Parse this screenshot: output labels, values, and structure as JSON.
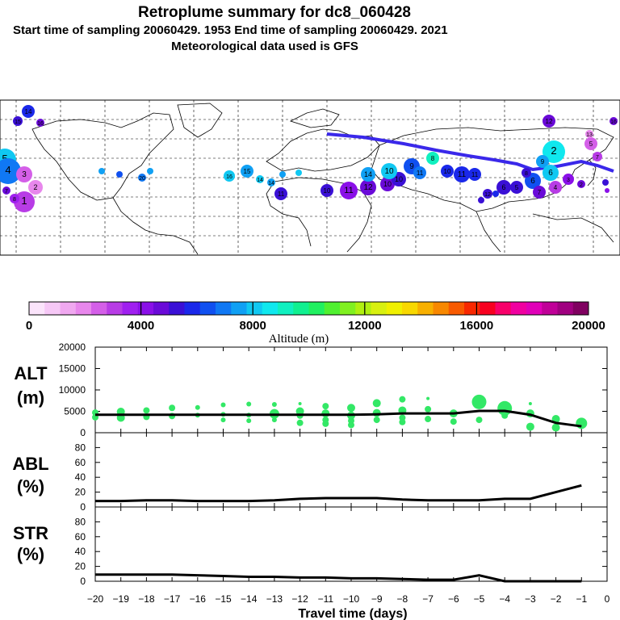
{
  "header": {
    "title": "Retroplume summary for dc8_060428",
    "line2": "Start time of sampling 20060429.  1953     End time of sampling 20060429.  2021",
    "line3": "Meteorological data used is GFS"
  },
  "colorbar": {
    "label": "Altitude (m)",
    "ticks": [
      "0",
      "4000",
      "8000",
      "12000",
      "16000",
      "20000"
    ],
    "colors": [
      "#fbe4fb",
      "#f6c8f6",
      "#f0a8f0",
      "#e887ec",
      "#d45fe8",
      "#b83ce6",
      "#a020f0",
      "#8a10e8",
      "#6a0ad8",
      "#3a10d6",
      "#1a28ea",
      "#1050f0",
      "#1078f4",
      "#10a0f4",
      "#10c8f2",
      "#10e8ee",
      "#10f0c0",
      "#10f090",
      "#20f060",
      "#50f030",
      "#80f020",
      "#b0f010",
      "#d8f010",
      "#f0f000",
      "#f8d800",
      "#f8b000",
      "#f88800",
      "#f85a00",
      "#f82800",
      "#f80020",
      "#f8006a",
      "#f000a0",
      "#e000b8",
      "#c00098",
      "#a00080",
      "#800060"
    ]
  },
  "map_labels": [
    "1",
    "2",
    "3",
    "4",
    "5",
    "6",
    "7",
    "8",
    "9",
    "10",
    "11",
    "12",
    "13",
    "14",
    "15",
    "16",
    "17",
    "18",
    "19",
    "20"
  ],
  "chart_data": [
    {
      "type": "scatter+line",
      "panel": "ALT",
      "ylabel": "ALT",
      "yunit": "(m)",
      "ylim": [
        0,
        20000
      ],
      "yticks": [
        "0",
        "5000",
        "10000",
        "15000",
        "20000"
      ],
      "x": [
        -20,
        -19,
        -18,
        -17,
        -16,
        -15,
        -14,
        -13,
        -12,
        -11,
        -10,
        -9,
        -8,
        -7,
        -6,
        -5,
        -4,
        -3,
        -2,
        -1
      ],
      "mean_line": [
        4200,
        4200,
        4200,
        4200,
        4200,
        4200,
        4200,
        4200,
        4200,
        4200,
        4200,
        4300,
        4500,
        4500,
        4500,
        5100,
        5100,
        4200,
        2300,
        1500
      ],
      "points": [
        {
          "day": -20,
          "alt": 4700,
          "size": 4
        },
        {
          "day": -20,
          "alt": 3600,
          "size": 4
        },
        {
          "day": -19,
          "alt": 4900,
          "size": 5
        },
        {
          "day": -19,
          "alt": 3500,
          "size": 5
        },
        {
          "day": -18,
          "alt": 5200,
          "size": 4
        },
        {
          "day": -18,
          "alt": 3700,
          "size": 4
        },
        {
          "day": -17,
          "alt": 5800,
          "size": 4
        },
        {
          "day": -17,
          "alt": 3900,
          "size": 4
        },
        {
          "day": -16,
          "alt": 5900,
          "size": 3
        },
        {
          "day": -16,
          "alt": 4100,
          "size": 3
        },
        {
          "day": -15,
          "alt": 6500,
          "size": 3
        },
        {
          "day": -15,
          "alt": 4300,
          "size": 3
        },
        {
          "day": -15,
          "alt": 3000,
          "size": 3
        },
        {
          "day": -14,
          "alt": 6700,
          "size": 3
        },
        {
          "day": -14,
          "alt": 4100,
          "size": 3
        },
        {
          "day": -14,
          "alt": 2800,
          "size": 3
        },
        {
          "day": -13,
          "alt": 6600,
          "size": 3
        },
        {
          "day": -13,
          "alt": 4400,
          "size": 6
        },
        {
          "day": -13,
          "alt": 3000,
          "size": 3
        },
        {
          "day": -12,
          "alt": 6800,
          "size": 2
        },
        {
          "day": -12,
          "alt": 5000,
          "size": 5
        },
        {
          "day": -12,
          "alt": 4000,
          "size": 4
        },
        {
          "day": -12,
          "alt": 2300,
          "size": 4
        },
        {
          "day": -11,
          "alt": 6200,
          "size": 4
        },
        {
          "day": -11,
          "alt": 4500,
          "size": 5
        },
        {
          "day": -11,
          "alt": 3000,
          "size": 4
        },
        {
          "day": -11,
          "alt": 2100,
          "size": 4
        },
        {
          "day": -10,
          "alt": 5800,
          "size": 5
        },
        {
          "day": -10,
          "alt": 4000,
          "size": 5
        },
        {
          "day": -10,
          "alt": 2800,
          "size": 4
        },
        {
          "day": -10,
          "alt": 1800,
          "size": 4
        },
        {
          "day": -9,
          "alt": 6900,
          "size": 5
        },
        {
          "day": -9,
          "alt": 4600,
          "size": 5
        },
        {
          "day": -9,
          "alt": 3000,
          "size": 4
        },
        {
          "day": -8,
          "alt": 7800,
          "size": 4
        },
        {
          "day": -8,
          "alt": 5200,
          "size": 5
        },
        {
          "day": -8,
          "alt": 3500,
          "size": 4
        },
        {
          "day": -8,
          "alt": 2500,
          "size": 4
        },
        {
          "day": -7,
          "alt": 8000,
          "size": 2
        },
        {
          "day": -7,
          "alt": 5500,
          "size": 4
        },
        {
          "day": -7,
          "alt": 3200,
          "size": 4
        },
        {
          "day": -6,
          "alt": 4500,
          "size": 5
        },
        {
          "day": -6,
          "alt": 2600,
          "size": 4
        },
        {
          "day": -5,
          "alt": 7200,
          "size": 9
        },
        {
          "day": -5,
          "alt": 3000,
          "size": 4
        },
        {
          "day": -4,
          "alt": 5700,
          "size": 9
        },
        {
          "day": -4,
          "alt": 4000,
          "size": 4
        },
        {
          "day": -3,
          "alt": 6800,
          "size": 2
        },
        {
          "day": -3,
          "alt": 4500,
          "size": 5
        },
        {
          "day": -3,
          "alt": 1400,
          "size": 5
        },
        {
          "day": -2,
          "alt": 3200,
          "size": 5
        },
        {
          "day": -2,
          "alt": 1200,
          "size": 5
        },
        {
          "day": -1,
          "alt": 2200,
          "size": 7
        }
      ]
    },
    {
      "type": "line",
      "panel": "ABL",
      "ylabel": "ABL",
      "yunit": "(%)",
      "ylim": [
        0,
        100
      ],
      "yticks": [
        "0",
        "20",
        "40",
        "60",
        "80"
      ],
      "x": [
        -20,
        -19,
        -18,
        -17,
        -16,
        -15,
        -14,
        -13,
        -12,
        -11,
        -10,
        -9,
        -8,
        -7,
        -6,
        -5,
        -4,
        -3,
        -2,
        -1
      ],
      "values": [
        8,
        8,
        9,
        9,
        8,
        8,
        8,
        9,
        11,
        12,
        12,
        12,
        10,
        9,
        9,
        9,
        11,
        11,
        20,
        29
      ]
    },
    {
      "type": "line",
      "panel": "STR",
      "ylabel": "STR",
      "yunit": "(%)",
      "ylim": [
        0,
        100
      ],
      "yticks": [
        "0",
        "20",
        "40",
        "60",
        "80"
      ],
      "x": [
        -20,
        -19,
        -18,
        -17,
        -16,
        -15,
        -14,
        -13,
        -12,
        -11,
        -10,
        -9,
        -8,
        -7,
        -6,
        -5,
        -4,
        -3,
        -2,
        -1
      ],
      "values": [
        9,
        9,
        9,
        9,
        8,
        7,
        6,
        6,
        5,
        5,
        4,
        4,
        3,
        2,
        2,
        8,
        0,
        0,
        0,
        0
      ]
    }
  ],
  "xaxis": {
    "label": "Travel time (days)",
    "ticks": [
      "−20",
      "−19",
      "−18",
      "−17",
      "−16",
      "−15",
      "−14",
      "−13",
      "−12",
      "−11",
      "−10",
      "−9",
      "−8",
      "−7",
      "−6",
      "−5",
      "−4",
      "−3",
      "−2",
      "−1",
      "0"
    ]
  }
}
